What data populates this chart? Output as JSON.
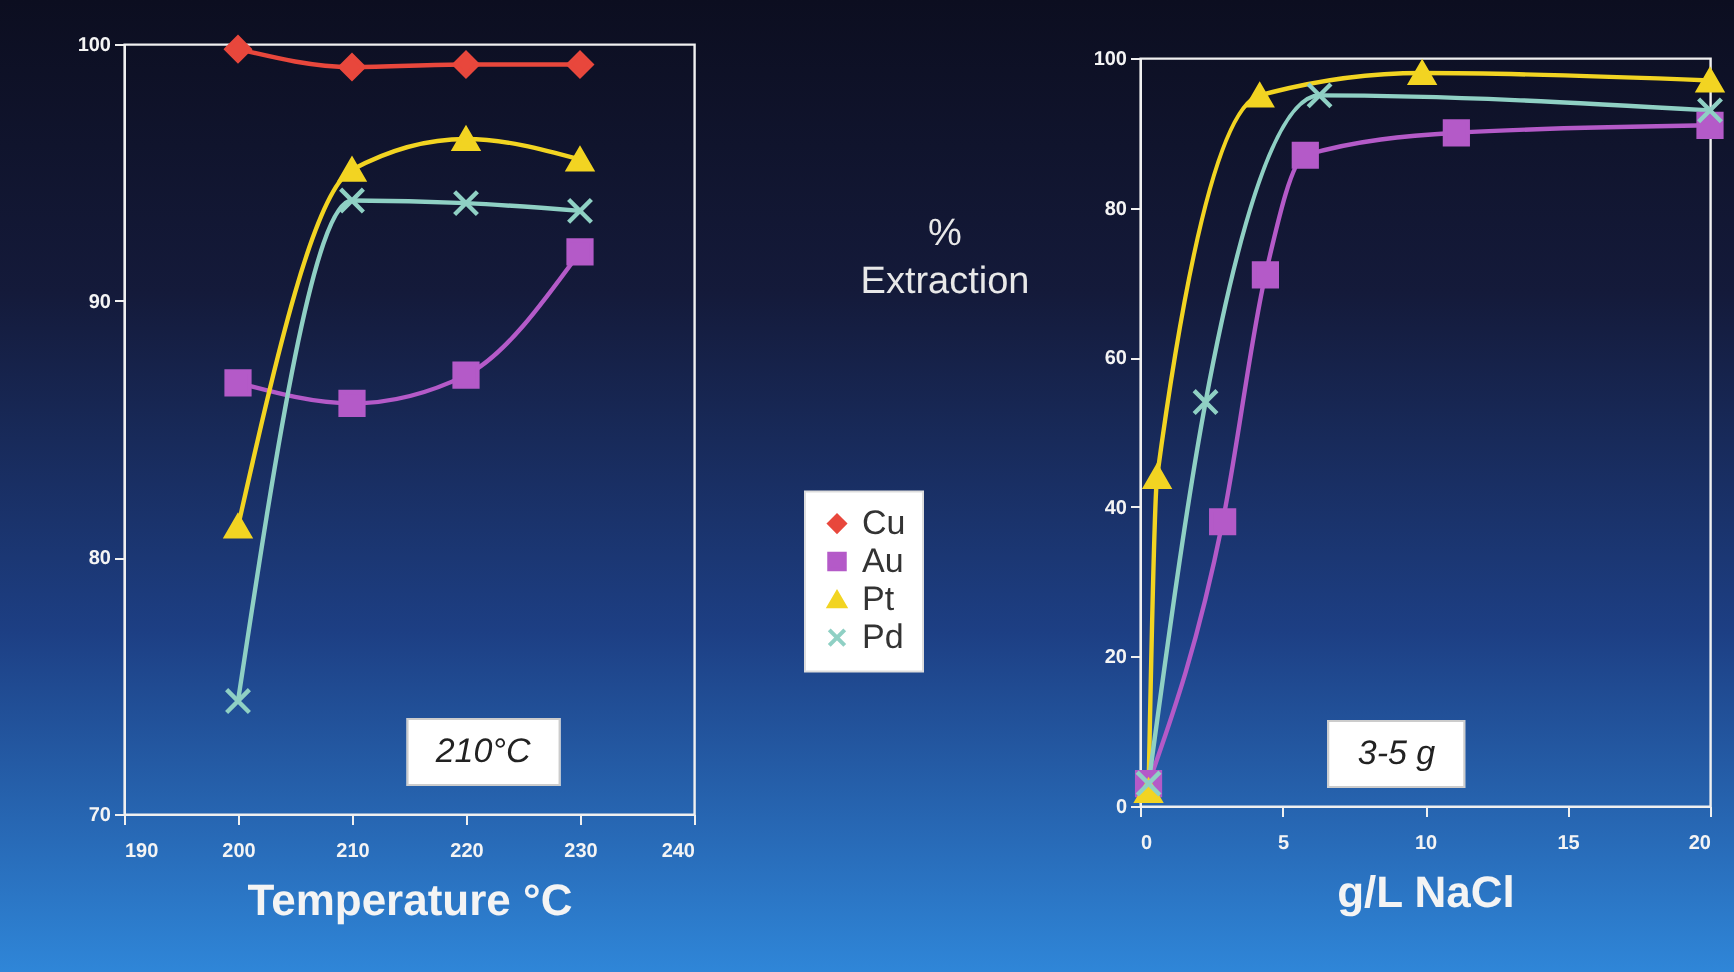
{
  "chart_data": [
    {
      "type": "line",
      "xlabel": "Temperature °C",
      "ylabel": "% Extraction",
      "xlim": [
        190,
        240
      ],
      "xticks": [
        190,
        200,
        210,
        220,
        230,
        240
      ],
      "ylim": [
        70,
        100
      ],
      "yticks": [
        70,
        80,
        90,
        100
      ],
      "grid": false,
      "legend": "right",
      "annotations": [
        "210°C"
      ],
      "series": [
        {
          "name": "Cu",
          "color": "#e8473c",
          "marker": "diamond",
          "x": [
            200,
            210,
            220,
            230
          ],
          "values": [
            99.8,
            99.1,
            99.2,
            99.2
          ]
        },
        {
          "name": "Au",
          "color": "#b45ac8",
          "marker": "square",
          "x": [
            200,
            210,
            220,
            230
          ],
          "values": [
            86.8,
            86.0,
            87.1,
            91.9
          ]
        },
        {
          "name": "Pt",
          "color": "#f2d422",
          "marker": "triangle",
          "x": [
            200,
            210,
            220,
            230
          ],
          "values": [
            81.2,
            95.1,
            96.3,
            95.5
          ]
        },
        {
          "name": "Pd",
          "color": "#8fd0c4",
          "marker": "cross",
          "x": [
            200,
            210,
            220,
            230
          ],
          "values": [
            74.4,
            93.9,
            93.8,
            93.5
          ]
        }
      ]
    },
    {
      "type": "line",
      "xlabel": "g/L NaCl",
      "xlim": [
        0,
        20
      ],
      "xticks": [
        0,
        5,
        10,
        15,
        20
      ],
      "ylim": [
        0,
        100
      ],
      "yticks": [
        0,
        20,
        40,
        60,
        80,
        100
      ],
      "grid": false,
      "annotations": [
        "3-5 g"
      ],
      "series": [
        {
          "color": "#b45ac8",
          "marker": "square",
          "x": [
            0.3,
            2.9,
            4.4,
            5.8,
            11.1,
            20
          ],
          "values": [
            3,
            38,
            71,
            87,
            90,
            91
          ]
        },
        {
          "color": "#f2d422",
          "marker": "triangle",
          "x": [
            0.3,
            0.6,
            4.2,
            9.9,
            20
          ],
          "values": [
            2,
            44,
            95,
            98,
            97
          ]
        },
        {
          "color": "#8fd0c4",
          "marker": "cross",
          "x": [
            0.3,
            2.3,
            6.3,
            20
          ],
          "values": [
            3,
            54,
            95,
            93
          ]
        }
      ]
    }
  ]
}
